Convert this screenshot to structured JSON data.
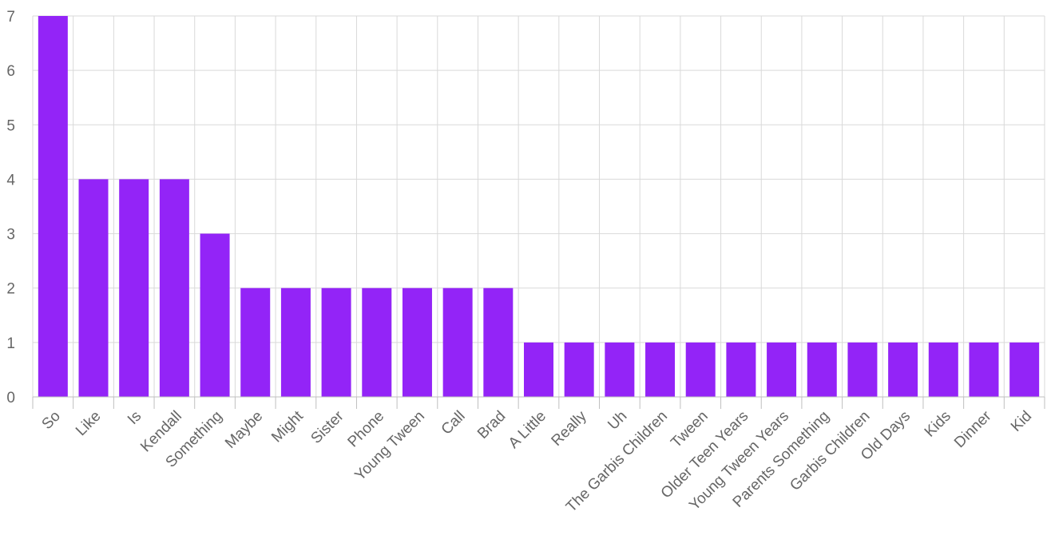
{
  "chart_data": {
    "type": "bar",
    "title": "",
    "xlabel": "",
    "ylabel": "",
    "ylim": [
      0,
      7
    ],
    "yticks": [
      "0",
      "1",
      "2",
      "3",
      "4",
      "5",
      "6",
      "7"
    ],
    "grid": true,
    "bar_color": "#9324f7",
    "categories": [
      "So",
      "Like",
      "Is",
      "Kendall",
      "Something",
      "Maybe",
      "Might",
      "Sister",
      "Phone",
      "Young Tween",
      "Call",
      "Brad",
      "A Little",
      "Really",
      "Uh",
      "The Garbis Children",
      "Tween",
      "Older Teen Years",
      "Young Tween Years",
      "Parents Something",
      "Garbis Children",
      "Old Days",
      "Kids",
      "Dinner",
      "Kid"
    ],
    "values": [
      7,
      4,
      4,
      4,
      3,
      2,
      2,
      2,
      2,
      2,
      2,
      2,
      1,
      1,
      1,
      1,
      1,
      1,
      1,
      1,
      1,
      1,
      1,
      1,
      1
    ]
  }
}
